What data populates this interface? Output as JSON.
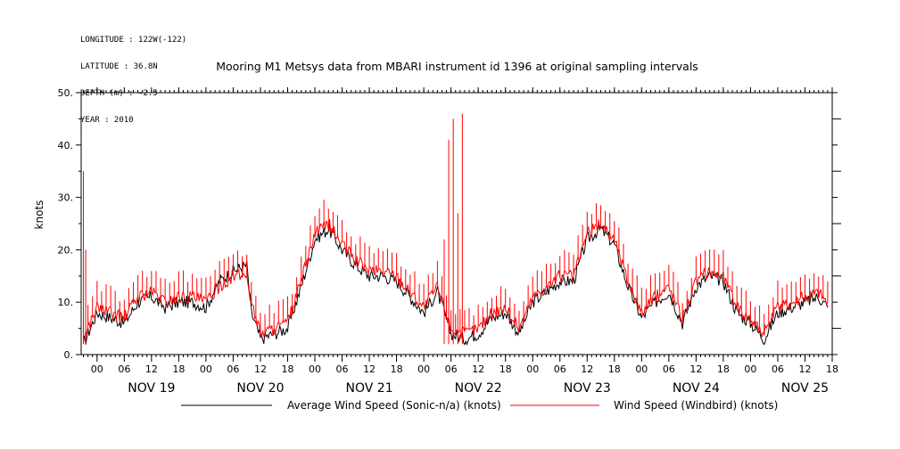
{
  "meta": {
    "longitude": "LONGITUDE : 122W(-122)",
    "latitude": "LATITUDE : 36.8N",
    "depth": "DEPTH (m) : -2.5",
    "year": "YEAR : 2010"
  },
  "chart_data": {
    "type": "line",
    "title": "Mooring M1 Metsys data from MBARI instrument id 1396 at original sampling intervals",
    "ylabel": "knots",
    "ylim": [
      0,
      50
    ],
    "xlim_hours": [
      -3.5,
      162
    ],
    "y_ticks": [
      "0.",
      "10.",
      "20.",
      "30.",
      "40.",
      "50."
    ],
    "x_hour_ticks": [
      "00",
      "06",
      "12",
      "18",
      "00",
      "06",
      "12",
      "18",
      "00",
      "06",
      "12",
      "18",
      "00",
      "06",
      "12",
      "18",
      "00",
      "06",
      "12",
      "18",
      "00",
      "06",
      "12",
      "18",
      "00",
      "06",
      "12",
      "18"
    ],
    "day_labels": [
      "NOV 19",
      "NOV 20",
      "NOV 21",
      "NOV 22",
      "NOV 23",
      "NOV 24",
      "NOV 25"
    ],
    "grid": false,
    "legend_placement": "bottom",
    "series": [
      {
        "name": "Average Wind Speed (Sonic-n/a) (knots)",
        "color": "#000000",
        "hours": [
          -3,
          0,
          3,
          6,
          9,
          12,
          15,
          18,
          21,
          24,
          27,
          30,
          33,
          34,
          36,
          39,
          42,
          45,
          48,
          51,
          54,
          57,
          60,
          63,
          66,
          69,
          72,
          75,
          78,
          81,
          84,
          87,
          90,
          93,
          96,
          99,
          102,
          105,
          108,
          111,
          114,
          117,
          120,
          123,
          126,
          129,
          132,
          135,
          138,
          141,
          144,
          147,
          150,
          153,
          156,
          159,
          161
        ],
        "values": [
          2,
          8,
          7,
          6,
          10,
          11,
          9,
          10,
          10,
          9,
          14,
          16,
          17,
          8,
          3,
          4,
          5,
          13,
          22,
          24,
          20,
          17,
          15,
          15,
          14,
          11,
          8,
          12,
          4,
          3,
          4,
          7,
          8,
          4,
          10,
          12,
          14,
          14,
          22,
          24,
          21,
          13,
          7,
          10,
          12,
          6,
          13,
          15,
          14,
          8,
          6,
          3,
          8,
          9,
          10,
          11,
          9
        ]
      },
      {
        "name": "Wind Speed (Windbird) (knots)",
        "color": "#ff0000",
        "hours": [
          -3,
          0,
          3,
          6,
          9,
          12,
          15,
          18,
          21,
          24,
          27,
          30,
          33,
          34,
          36,
          39,
          42,
          45,
          48,
          51,
          54,
          57,
          60,
          63,
          66,
          69,
          72,
          75,
          78,
          81,
          84,
          87,
          90,
          93,
          96,
          99,
          102,
          105,
          108,
          111,
          114,
          117,
          120,
          123,
          126,
          129,
          132,
          135,
          138,
          141,
          144,
          147,
          150,
          153,
          156,
          159,
          161
        ],
        "values": [
          3,
          9,
          8,
          7,
          11,
          12,
          10,
          11,
          11,
          10,
          13,
          15,
          15,
          10,
          4,
          5,
          6,
          14,
          23,
          25,
          21,
          18,
          16,
          16,
          15,
          12,
          9,
          13,
          5,
          4,
          5,
          8,
          9,
          5,
          11,
          13,
          15,
          15,
          23,
          25,
          22,
          14,
          8,
          11,
          13,
          7,
          14,
          16,
          15,
          9,
          7,
          4,
          9,
          10,
          11,
          12,
          10
        ],
        "spikes": [
          {
            "hour": -3,
            "value": 35
          },
          {
            "hour": -2.5,
            "value": 20
          },
          {
            "hour": 77.5,
            "value": 41
          },
          {
            "hour": 78.5,
            "value": 45
          },
          {
            "hour": 80.5,
            "value": 46
          },
          {
            "hour": 79.5,
            "value": 27
          },
          {
            "hour": 76.5,
            "value": 22
          }
        ]
      }
    ]
  }
}
